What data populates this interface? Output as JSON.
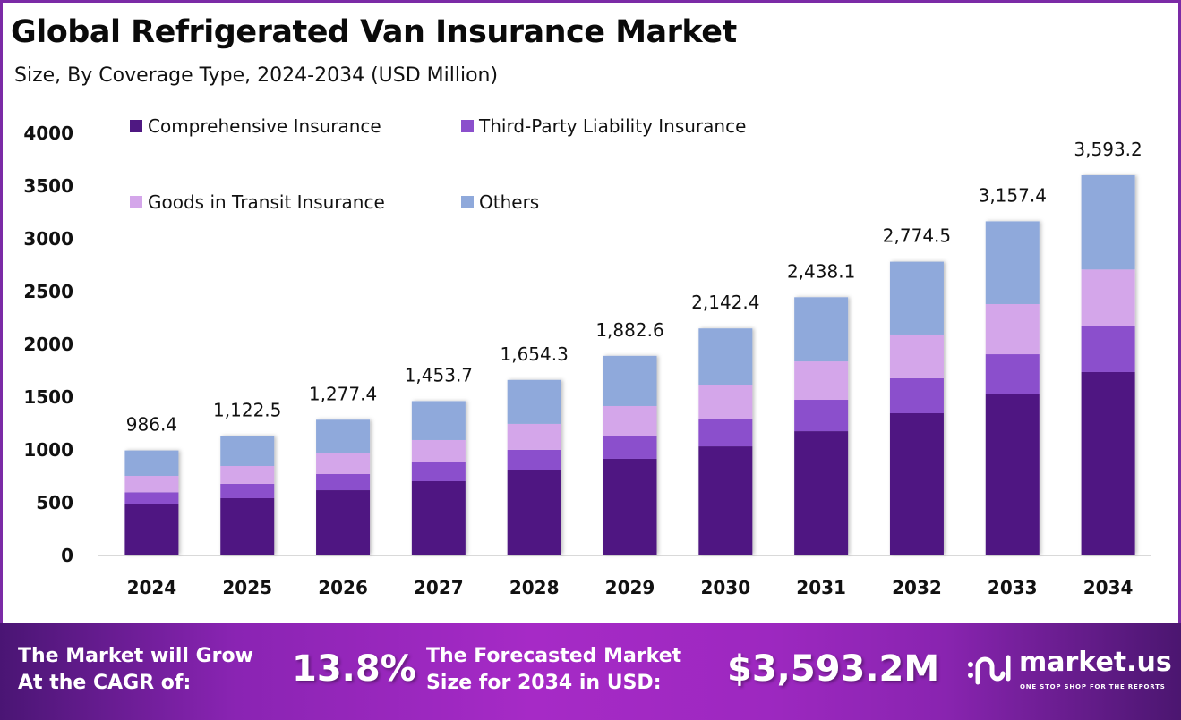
{
  "chart_data": {
    "type": "bar",
    "stacked": true,
    "title": "Global Refrigerated Van Insurance Market",
    "subtitle": "Size, By Coverage Type, 2024-2034 (USD Million)",
    "xlabel": "",
    "ylabel": "",
    "ylim": [
      0,
      4000
    ],
    "yticks": [
      0,
      500,
      1000,
      1500,
      2000,
      2500,
      3000,
      3500,
      4000
    ],
    "grid": false,
    "legend_position": "top-left",
    "categories": [
      "2024",
      "2025",
      "2026",
      "2027",
      "2028",
      "2029",
      "2030",
      "2031",
      "2032",
      "2033",
      "2034"
    ],
    "series": [
      {
        "name": "Comprehensive Insurance",
        "color": "#4f1882",
        "values": [
          478.6,
          534.0,
          610.0,
          695.0,
          797.0,
          907.0,
          1025.0,
          1169.0,
          1339.0,
          1517.0,
          1729.0
        ]
      },
      {
        "name": "Third-Party Liability Insurance",
        "color": "#8b4fcc",
        "values": [
          112.0,
          136.0,
          153.0,
          178.0,
          195.0,
          220.0,
          263.0,
          297.0,
          331.0,
          381.0,
          432.0
        ]
      },
      {
        "name": "Goods in Transit Insurance",
        "color": "#d4a6ea",
        "values": [
          155.0,
          169.0,
          195.0,
          212.0,
          246.0,
          280.0,
          314.0,
          364.0,
          415.0,
          475.0,
          540.0
        ]
      },
      {
        "name": "Others",
        "color": "#8fa9db",
        "values": [
          240.8,
          283.5,
          319.4,
          368.7,
          416.3,
          475.6,
          540.4,
          608.1,
          689.5,
          784.4,
          892.2
        ]
      }
    ],
    "totals": [
      986.4,
      1122.5,
      1277.4,
      1453.7,
      1654.3,
      1882.6,
      2142.4,
      2438.1,
      2774.5,
      3157.4,
      3593.2
    ],
    "total_labels": [
      "986.4",
      "1,122.5",
      "1,277.4",
      "1,453.7",
      "1,654.3",
      "1,882.6",
      "2,142.4",
      "2,438.1",
      "2,774.5",
      "3,157.4",
      "3,593.2"
    ]
  },
  "footer": {
    "cagr_text_line1": "The Market will Grow",
    "cagr_text_line2": "At the CAGR of:",
    "cagr_value": "13.8%",
    "forecast_text_line1": "The Forecasted Market",
    "forecast_text_line2": "Size for 2034 in USD:",
    "forecast_value": "$3,593.2M",
    "logo_name": "market.us",
    "logo_tagline": "ONE STOP SHOP FOR THE REPORTS",
    "logo_icon": "market-us-logo-icon"
  }
}
